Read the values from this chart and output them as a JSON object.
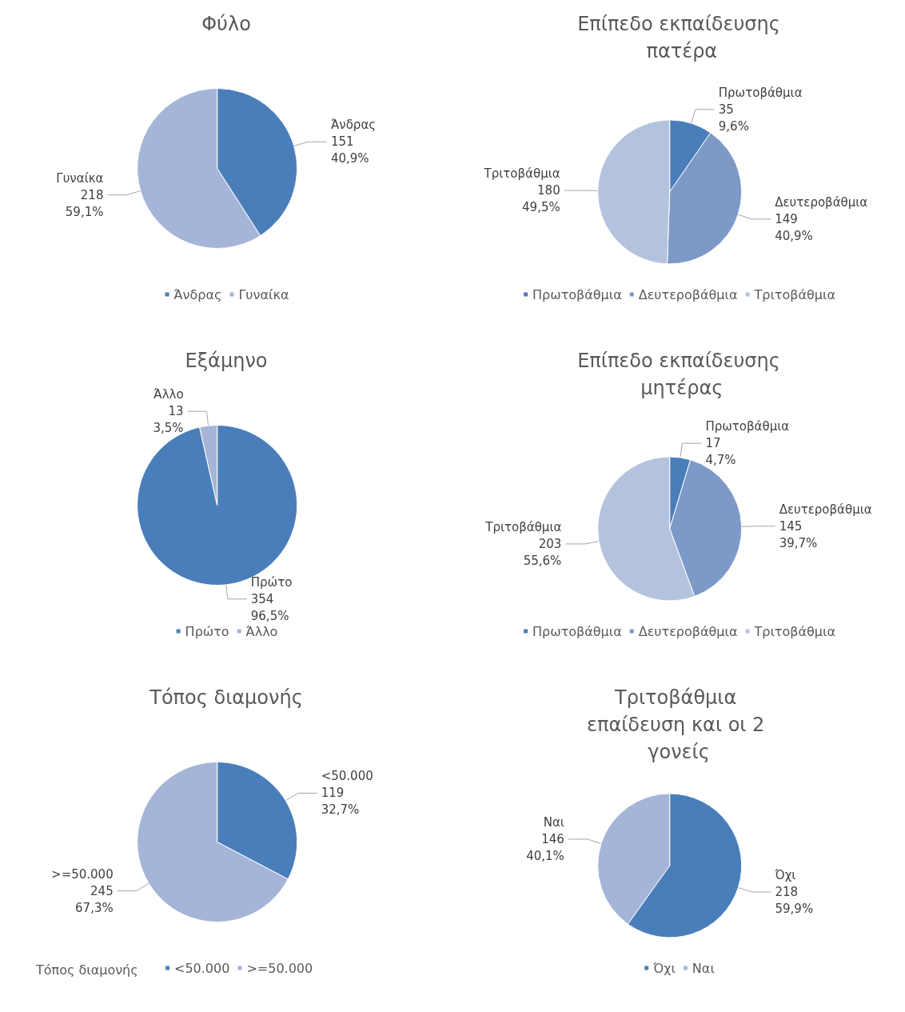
{
  "chart_data": [
    {
      "type": "pie",
      "title": "Φύλο",
      "categories": [
        "Άνδρας",
        "Γυναίκα"
      ],
      "values": [
        151,
        218
      ],
      "value_labels": [
        "151\n40,9%",
        "218\n59,1%"
      ],
      "colors": [
        "#4a7ebb",
        "#a5b5d8"
      ],
      "legend": "bottom"
    },
    {
      "type": "pie",
      "title": "Επίπεδο εκπαίδευσης πατέρα",
      "categories": [
        "Πρωτοβάθμια",
        "Δευτεροβάθμια",
        "Τριτοβάθμια"
      ],
      "values": [
        35,
        149,
        180
      ],
      "value_labels": [
        "35\n9,6%",
        "149\n40,9%",
        "180\n49,5%"
      ],
      "colors": [
        "#4a7ebb",
        "#7c99c8",
        "#b4c3dd"
      ],
      "legend": "bottom"
    },
    {
      "type": "pie",
      "title": "Εξάμηνο",
      "categories": [
        "Πρώτο",
        "Άλλο"
      ],
      "values": [
        354,
        13
      ],
      "value_labels": [
        "354\n96,5%",
        "13\n3,5%"
      ],
      "colors": [
        "#4a7ebb",
        "#a5b5d8"
      ],
      "legend": "bottom"
    },
    {
      "type": "pie",
      "title": "Επίπεδο εκπαίδευσης μητέρας",
      "categories": [
        "Πρωτοβάθμια",
        "Δευτεροβάθμια",
        "Τριτοβάθμια"
      ],
      "values": [
        17,
        145,
        203
      ],
      "value_labels": [
        "17\n4,7%",
        "145\n39,7%",
        "203\n55,6%"
      ],
      "colors": [
        "#4a7ebb",
        "#7c99c8",
        "#b4c3dd"
      ],
      "legend": "bottom"
    },
    {
      "type": "pie",
      "title": "Τόπος διαμονής",
      "legend_title": "Τόπος διαμονής",
      "categories": [
        "<50.000",
        ">=50.000"
      ],
      "values": [
        119,
        245
      ],
      "value_labels": [
        "119\n32,7%",
        "245\n67,3%"
      ],
      "colors": [
        "#4a7ebb",
        "#a5b5d8"
      ],
      "legend": "bottom"
    },
    {
      "type": "pie",
      "title": "Τριτοβάθμια επαίδευση και οι 2 γονείς",
      "categories": [
        "Όχι",
        "Ναι"
      ],
      "values": [
        218,
        146
      ],
      "value_labels": [
        "218\n59,9%",
        "146\n40,1%"
      ],
      "colors": [
        "#4a7ebb",
        "#a5b5d8"
      ],
      "legend": "bottom"
    }
  ]
}
